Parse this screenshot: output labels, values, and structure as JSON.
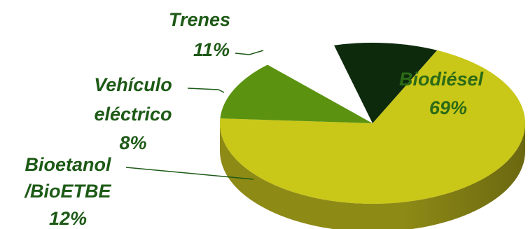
{
  "chart_data": {
    "type": "pie",
    "style": "3d",
    "slices": [
      {
        "label": "Biodiésel",
        "value": 69,
        "percent_label": "69%",
        "color": "#c9c718",
        "side_color": "#8e8a16"
      },
      {
        "label": "Bioetanol /BioETBE",
        "label_lines": [
          "Bioetanol",
          "/BioETBE"
        ],
        "value": 12,
        "percent_label": "12%",
        "color": "#5b9310",
        "side_color": "#3d6b0d"
      },
      {
        "label": "Vehículo eléctrico",
        "label_lines": [
          "Vehículo",
          "eléctrico"
        ],
        "value": 8,
        "percent_label": "8%",
        "color": "#ffffff",
        "side_color": "#e6e6e6"
      },
      {
        "label": "Trenes",
        "value": 11,
        "percent_label": "11%",
        "color": "#0d2a0d",
        "side_color": "#0a1f0a"
      }
    ],
    "legend": "none",
    "label_color": "#1d5a16"
  }
}
